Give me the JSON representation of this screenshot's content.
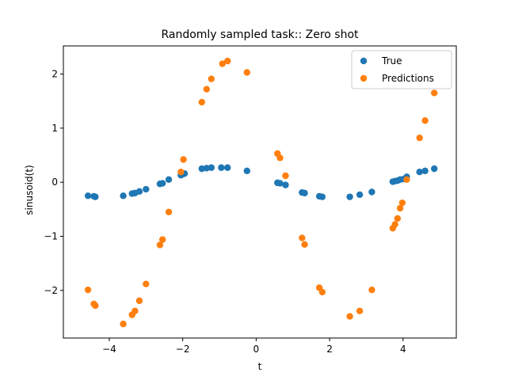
{
  "chart_data": {
    "type": "scatter",
    "title": "Randomly sampled task:: Zero shot",
    "xlabel": "t",
    "ylabel": "sinusoid(t)",
    "xlim": [
      -5.25,
      5.45
    ],
    "ylim": [
      -2.88,
      2.52
    ],
    "xticks": [
      -4,
      -2,
      0,
      2,
      4
    ],
    "yticks": [
      -2,
      -1,
      0,
      1,
      2
    ],
    "grid": false,
    "legend_position": "top-right",
    "series": [
      {
        "name": "True",
        "color": "#1f77b4",
        "points": [
          [
            -4.58,
            -0.25
          ],
          [
            -4.42,
            -0.26
          ],
          [
            -4.38,
            -0.27
          ],
          [
            -3.62,
            -0.25
          ],
          [
            -3.38,
            -0.21
          ],
          [
            -3.3,
            -0.2
          ],
          [
            -3.18,
            -0.17
          ],
          [
            -3.0,
            -0.13
          ],
          [
            -2.62,
            -0.03
          ],
          [
            -2.55,
            -0.02
          ],
          [
            -2.38,
            0.05
          ],
          [
            -2.05,
            0.13
          ],
          [
            -2.0,
            0.15
          ],
          [
            -1.95,
            0.16
          ],
          [
            -1.48,
            0.25
          ],
          [
            -1.35,
            0.26
          ],
          [
            -1.22,
            0.27
          ],
          [
            -0.95,
            0.27
          ],
          [
            -0.78,
            0.27
          ],
          [
            -0.25,
            0.21
          ],
          [
            0.58,
            -0.01
          ],
          [
            0.65,
            -0.02
          ],
          [
            0.8,
            -0.05
          ],
          [
            1.25,
            -0.19
          ],
          [
            1.32,
            -0.2
          ],
          [
            1.72,
            -0.26
          ],
          [
            1.8,
            -0.27
          ],
          [
            2.55,
            -0.27
          ],
          [
            2.82,
            -0.23
          ],
          [
            3.15,
            -0.18
          ],
          [
            3.72,
            0.01
          ],
          [
            3.78,
            0.02
          ],
          [
            3.85,
            0.03
          ],
          [
            3.92,
            0.05
          ],
          [
            4.02,
            0.06
          ],
          [
            4.1,
            0.1
          ],
          [
            4.45,
            0.19
          ],
          [
            4.6,
            0.21
          ],
          [
            4.85,
            0.25
          ]
        ]
      },
      {
        "name": "Predictions",
        "color": "#ff7f0e",
        "points": [
          [
            -4.58,
            -1.99
          ],
          [
            -4.42,
            -2.25
          ],
          [
            -4.38,
            -2.28
          ],
          [
            -3.62,
            -2.62
          ],
          [
            -3.38,
            -2.45
          ],
          [
            -3.3,
            -2.38
          ],
          [
            -3.18,
            -2.19
          ],
          [
            -3.0,
            -1.88
          ],
          [
            -2.62,
            -1.16
          ],
          [
            -2.55,
            -1.06
          ],
          [
            -2.38,
            -0.55
          ],
          [
            -2.05,
            0.19
          ],
          [
            -1.98,
            0.42
          ],
          [
            -1.48,
            1.48
          ],
          [
            -1.35,
            1.72
          ],
          [
            -1.22,
            1.91
          ],
          [
            -0.92,
            2.19
          ],
          [
            -0.78,
            2.24
          ],
          [
            -0.25,
            2.03
          ],
          [
            0.58,
            0.53
          ],
          [
            0.65,
            0.45
          ],
          [
            0.8,
            0.12
          ],
          [
            1.25,
            -1.03
          ],
          [
            1.32,
            -1.15
          ],
          [
            1.72,
            -1.95
          ],
          [
            1.8,
            -2.03
          ],
          [
            2.55,
            -2.48
          ],
          [
            2.82,
            -2.38
          ],
          [
            3.15,
            -1.99
          ],
          [
            3.72,
            -0.85
          ],
          [
            3.78,
            -0.78
          ],
          [
            3.85,
            -0.67
          ],
          [
            3.92,
            -0.48
          ],
          [
            3.98,
            -0.38
          ],
          [
            4.1,
            0.05
          ],
          [
            4.45,
            0.82
          ],
          [
            4.6,
            1.14
          ],
          [
            4.85,
            1.65
          ]
        ]
      }
    ]
  }
}
